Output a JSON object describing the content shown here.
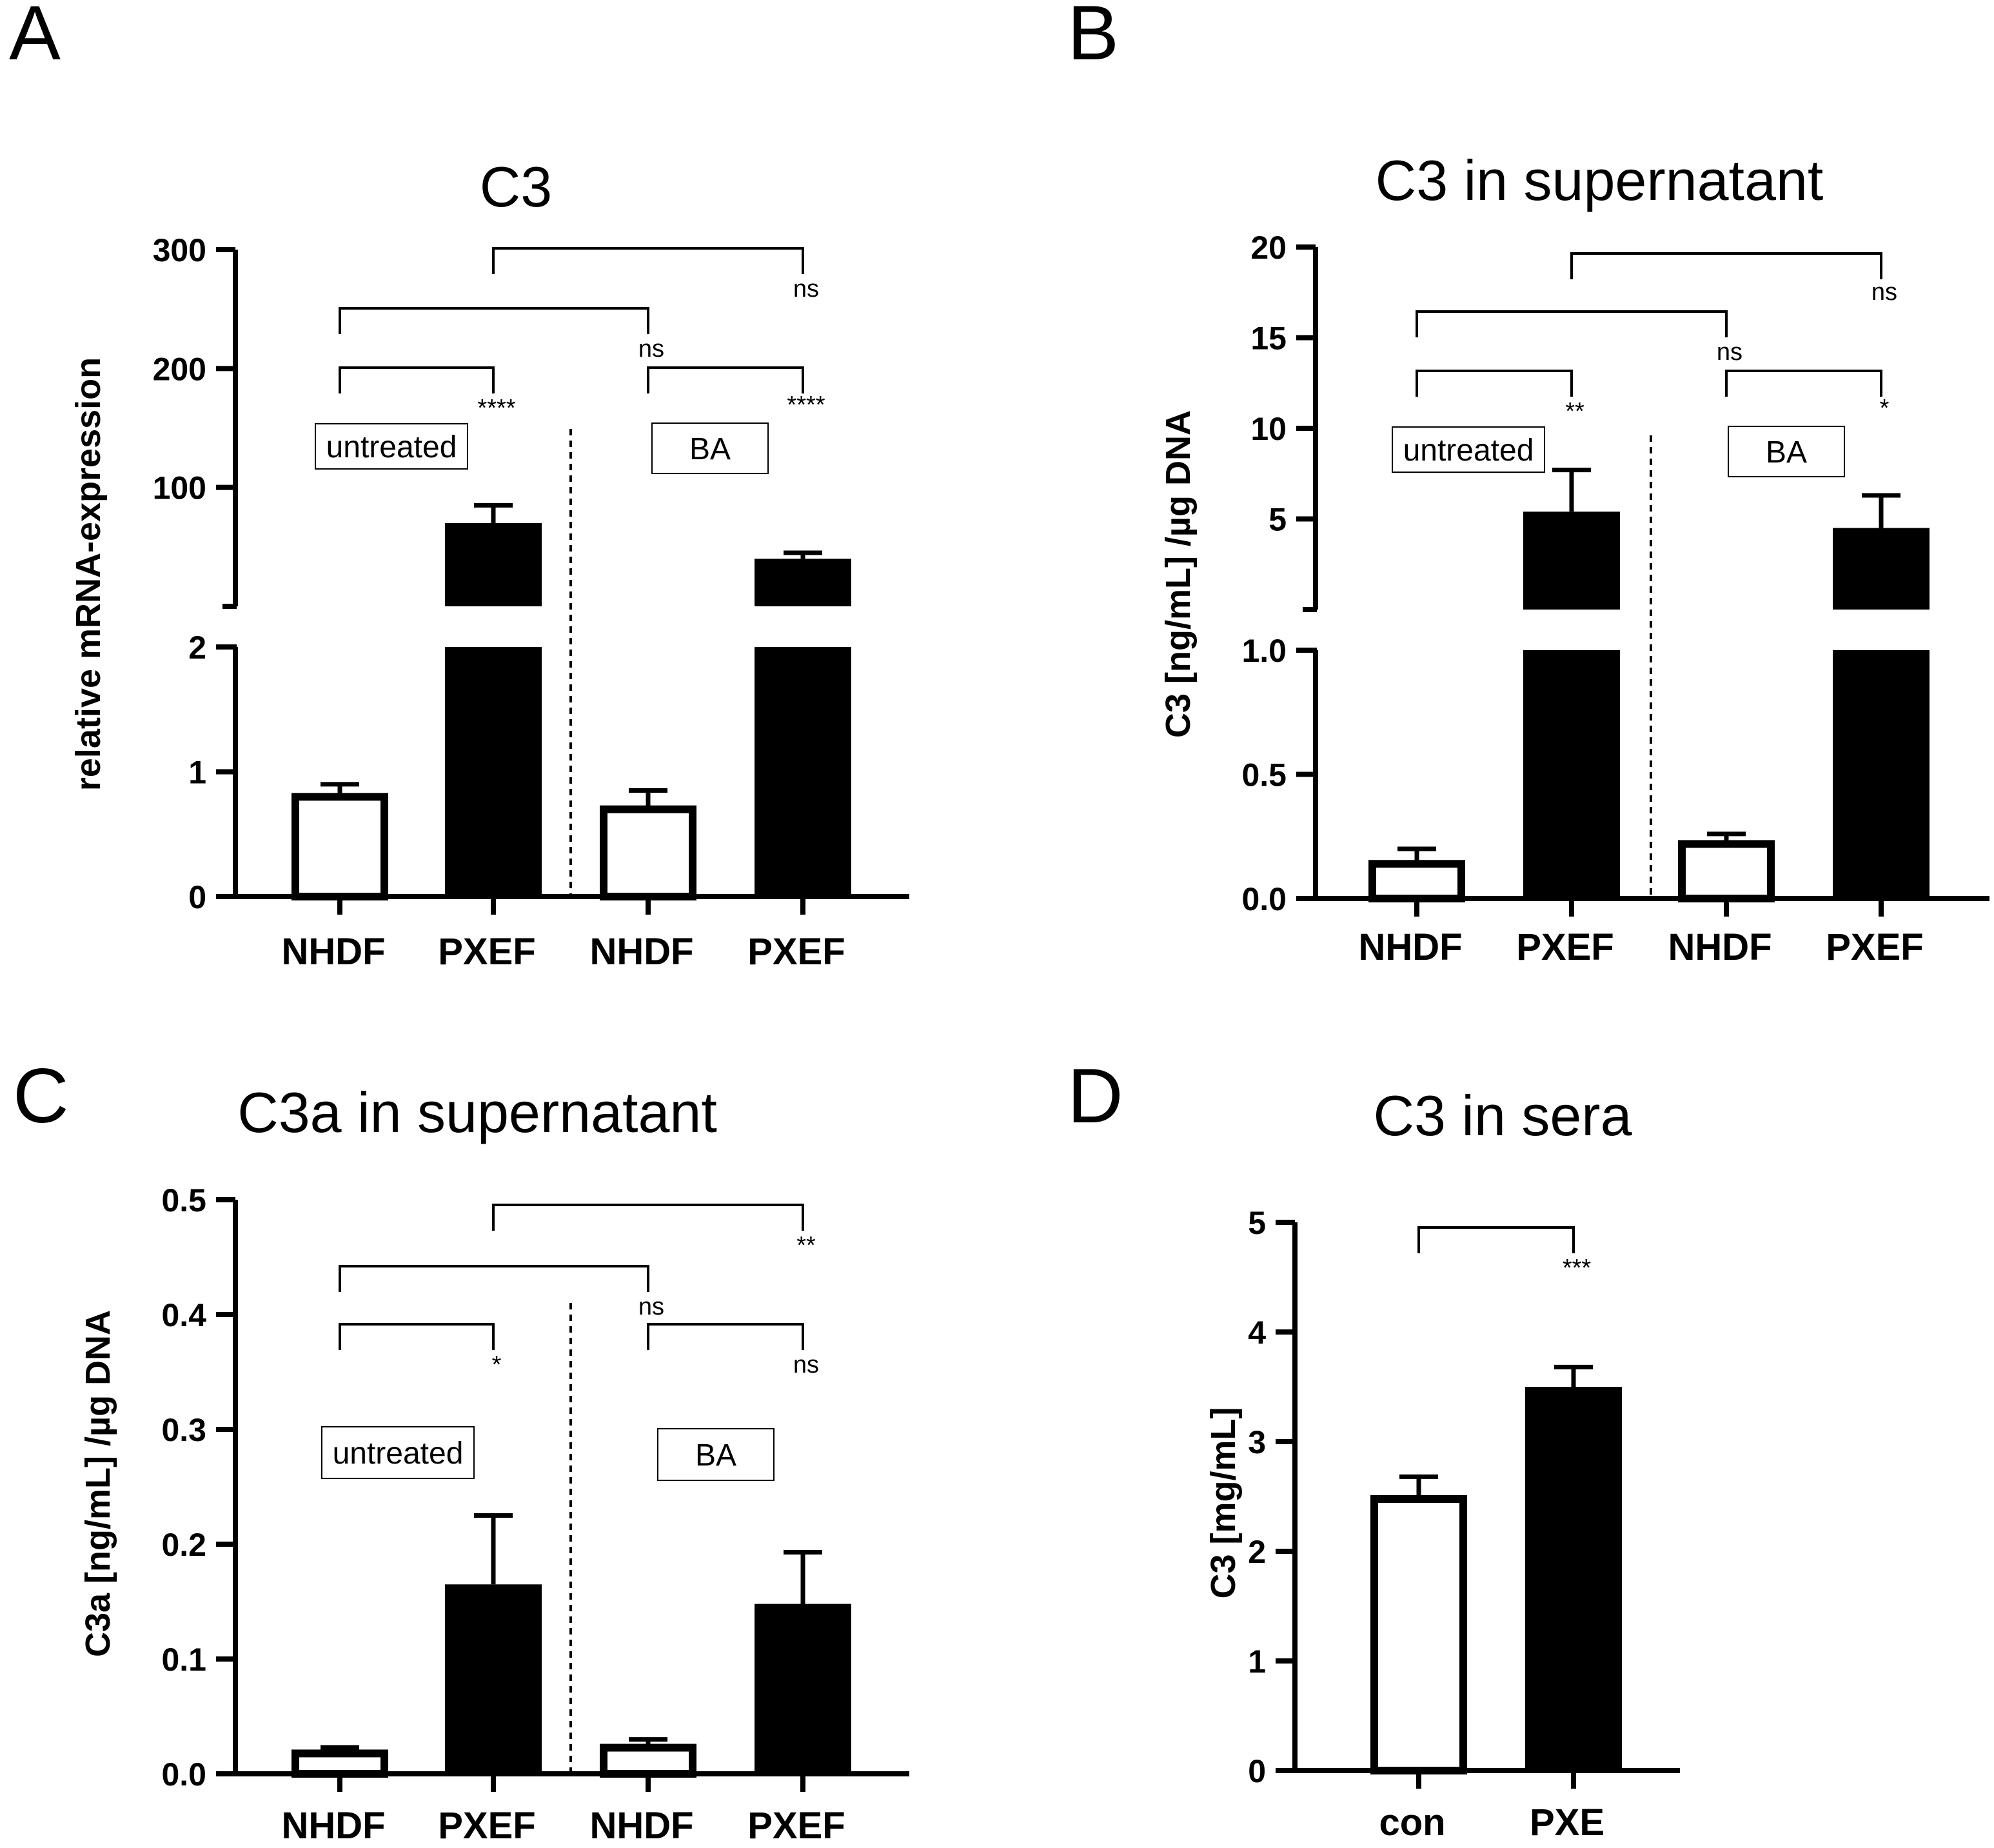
{
  "chart_data": [
    {
      "type": "bar",
      "panel": "A",
      "title": "C3",
      "ylabel": "relative mRNA-expression",
      "categories": [
        "NHDF",
        "PXEF",
        "NHDF",
        "PXEF"
      ],
      "values": [
        0.82,
        70,
        0.72,
        40
      ],
      "errors": [
        0.08,
        15,
        0.13,
        5
      ],
      "fill": [
        "white",
        "black",
        "white",
        "black"
      ],
      "yaxis_segments": [
        {
          "range": [
            0,
            2
          ],
          "ticks": [
            0,
            1,
            2
          ],
          "tick_labels": [
            "0",
            "1",
            "2"
          ]
        },
        {
          "range": [
            0,
            300
          ],
          "ticks": [
            100,
            200,
            300
          ],
          "tick_labels": [
            "100",
            "200",
            "300"
          ]
        }
      ],
      "conditions": [
        "untreated",
        "BA"
      ],
      "comparisons": [
        {
          "groups": [
            0,
            1
          ],
          "label": "****"
        },
        {
          "groups": [
            2,
            3
          ],
          "label": "****"
        },
        {
          "groups": [
            0,
            2
          ],
          "label": "ns"
        },
        {
          "groups": [
            1,
            3
          ],
          "label": "ns"
        }
      ]
    },
    {
      "type": "bar",
      "panel": "B",
      "title": "C3 in supernatant",
      "ylabel": "C3 [ng/mL] /µg DNA",
      "categories": [
        "NHDF",
        "PXEF",
        "NHDF",
        "PXEF"
      ],
      "values": [
        0.15,
        5.4,
        0.23,
        4.5
      ],
      "errors": [
        0.05,
        2.3,
        0.03,
        1.8
      ],
      "fill": [
        "white",
        "black",
        "white",
        "black"
      ],
      "yaxis_segments": [
        {
          "range": [
            0,
            1.0
          ],
          "ticks": [
            0,
            0.5,
            1.0
          ],
          "tick_labels": [
            "0.0",
            "0.5",
            "1.0"
          ]
        },
        {
          "range": [
            0,
            20
          ],
          "ticks": [
            5,
            10,
            15,
            20
          ],
          "tick_labels": [
            "5",
            "10",
            "15",
            "20"
          ]
        }
      ],
      "conditions": [
        "untreated",
        "BA"
      ],
      "comparisons": [
        {
          "groups": [
            0,
            1
          ],
          "label": "**"
        },
        {
          "groups": [
            2,
            3
          ],
          "label": "*"
        },
        {
          "groups": [
            0,
            2
          ],
          "label": "ns"
        },
        {
          "groups": [
            1,
            3
          ],
          "label": "ns"
        }
      ]
    },
    {
      "type": "bar",
      "panel": "C",
      "title": "C3a in supernatant",
      "ylabel": "C3a [ng/mL] /µg DNA",
      "categories": [
        "NHDF",
        "PXEF",
        "NHDF",
        "PXEF"
      ],
      "values": [
        0.02,
        0.165,
        0.025,
        0.148
      ],
      "errors": [
        0.003,
        0.06,
        0.005,
        0.045
      ],
      "fill": [
        "white",
        "black",
        "white",
        "black"
      ],
      "ylim": [
        0,
        0.5
      ],
      "ticks": [
        0.0,
        0.1,
        0.2,
        0.3,
        0.4,
        0.5
      ],
      "tick_labels": [
        "0.0",
        "0.1",
        "0.2",
        "0.3",
        "0.4",
        "0.5"
      ],
      "conditions": [
        "untreated",
        "BA"
      ],
      "comparisons": [
        {
          "groups": [
            0,
            1
          ],
          "label": "*"
        },
        {
          "groups": [
            2,
            3
          ],
          "label": "ns"
        },
        {
          "groups": [
            0,
            2
          ],
          "label": "ns"
        },
        {
          "groups": [
            1,
            3
          ],
          "label": "**"
        }
      ]
    },
    {
      "type": "bar",
      "panel": "D",
      "title": "C3 in sera",
      "ylabel": "C3 [mg/mL]",
      "categories": [
        "con",
        "PXE"
      ],
      "values": [
        2.5,
        3.5
      ],
      "errors": [
        0.18,
        0.18
      ],
      "fill": [
        "white",
        "black"
      ],
      "ylim": [
        0,
        5
      ],
      "ticks": [
        0,
        1,
        2,
        3,
        4,
        5
      ],
      "tick_labels": [
        "0",
        "1",
        "2",
        "3",
        "4",
        "5"
      ],
      "comparisons": [
        {
          "groups": [
            0,
            1
          ],
          "label": "***"
        }
      ]
    }
  ]
}
